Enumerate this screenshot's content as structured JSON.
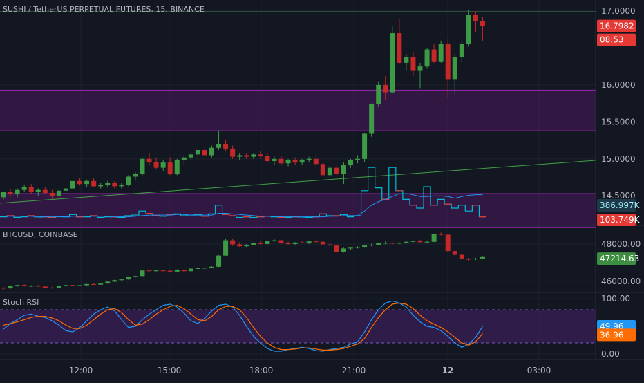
{
  "colors": {
    "bg": "#131722",
    "grid": "#1e222d",
    "text": "#b2b5be",
    "up": "#26a69a",
    "upCandle": "#3e9b45",
    "down": "#e53935",
    "downCandle": "#c62828",
    "zone": "#4a1a5c",
    "zoneLine": "#9c27b0",
    "trend": "#43a047",
    "cyan": "#00bcd4",
    "blueK": "#2196f3",
    "orangeD": "#ff6d00",
    "stochBand": "#3b1f56"
  },
  "time_axis": {
    "ticks": [
      "12:00",
      "15:00",
      "18:00",
      "21:00",
      "12",
      "03:00"
    ]
  },
  "chart_data": [
    {
      "type": "candlestick",
      "title": "SUSHI / TetherUS PERPETUAL FUTURES, 15, BINANCE",
      "y_ticks": [
        "17.0000",
        "16.0000",
        "15.5000",
        "15.0000",
        "14.5000"
      ],
      "last_price": "16.7982",
      "countdown": "08:53",
      "ylim": [
        14.1,
        17.15
      ],
      "zones": [
        [
          15.38,
          15.93
        ],
        [
          14.07,
          14.53
        ]
      ],
      "horizontal_line": 16.99,
      "trendline": [
        [
          0,
          14.4
        ],
        [
          1,
          14.98
        ]
      ],
      "candles": [
        [
          14.48,
          14.56,
          14.45,
          14.55
        ],
        [
          14.55,
          14.6,
          14.5,
          14.52
        ],
        [
          14.52,
          14.6,
          14.48,
          14.58
        ],
        [
          14.58,
          14.65,
          14.55,
          14.62
        ],
        [
          14.62,
          14.66,
          14.52,
          14.55
        ],
        [
          14.55,
          14.6,
          14.5,
          14.58
        ],
        [
          14.58,
          14.62,
          14.52,
          14.54
        ],
        [
          14.54,
          14.58,
          14.46,
          14.5
        ],
        [
          14.5,
          14.6,
          14.48,
          14.57
        ],
        [
          14.57,
          14.62,
          14.54,
          14.6
        ],
        [
          14.6,
          14.72,
          14.58,
          14.7
        ],
        [
          14.7,
          14.74,
          14.64,
          14.66
        ],
        [
          14.66,
          14.72,
          14.62,
          14.7
        ],
        [
          14.7,
          14.74,
          14.62,
          14.63
        ],
        [
          14.63,
          14.68,
          14.6,
          14.65
        ],
        [
          14.65,
          14.7,
          14.62,
          14.68
        ],
        [
          14.68,
          14.7,
          14.6,
          14.63
        ],
        [
          14.63,
          14.68,
          14.6,
          14.65
        ],
        [
          14.65,
          14.78,
          14.63,
          14.76
        ],
        [
          14.76,
          14.82,
          14.72,
          14.8
        ],
        [
          14.8,
          15.02,
          14.78,
          15.0
        ],
        [
          15.0,
          15.08,
          14.92,
          14.96
        ],
        [
          14.96,
          15.02,
          14.86,
          14.88
        ],
        [
          14.88,
          14.98,
          14.84,
          14.95
        ],
        [
          14.95,
          15.02,
          14.78,
          14.8
        ],
        [
          14.8,
          15.0,
          14.78,
          14.98
        ],
        [
          14.98,
          15.05,
          14.92,
          15.02
        ],
        [
          15.02,
          15.1,
          14.98,
          15.06
        ],
        [
          15.06,
          15.14,
          15.0,
          15.12
        ],
        [
          15.12,
          15.16,
          15.02,
          15.05
        ],
        [
          15.05,
          15.18,
          15.02,
          15.15
        ],
        [
          15.15,
          15.38,
          15.12,
          15.2
        ],
        [
          15.2,
          15.26,
          15.1,
          15.14
        ],
        [
          15.14,
          15.18,
          15.0,
          15.03
        ],
        [
          15.03,
          15.08,
          14.98,
          15.05
        ],
        [
          15.05,
          15.08,
          15.0,
          15.03
        ],
        [
          15.03,
          15.07,
          15.0,
          15.06
        ],
        [
          15.06,
          15.1,
          15.02,
          15.04
        ],
        [
          15.04,
          15.08,
          14.95,
          14.97
        ],
        [
          14.97,
          15.03,
          14.92,
          15.0
        ],
        [
          15.0,
          15.04,
          14.92,
          14.94
        ],
        [
          14.94,
          15.0,
          14.9,
          14.98
        ],
        [
          14.98,
          15.02,
          14.92,
          14.95
        ],
        [
          14.95,
          15.0,
          14.92,
          14.98
        ],
        [
          14.98,
          15.03,
          14.95,
          15.0
        ],
        [
          15.0,
          15.04,
          14.9,
          14.93
        ],
        [
          14.93,
          14.96,
          14.76,
          14.78
        ],
        [
          14.78,
          14.92,
          14.74,
          14.88
        ],
        [
          14.88,
          14.92,
          14.76,
          14.8
        ],
        [
          14.8,
          14.95,
          14.66,
          14.92
        ],
        [
          14.92,
          15.0,
          14.88,
          14.98
        ],
        [
          14.98,
          15.05,
          14.94,
          15.0
        ],
        [
          15.0,
          15.35,
          14.96,
          15.34
        ],
        [
          15.34,
          15.75,
          15.3,
          15.74
        ],
        [
          15.74,
          16.05,
          15.7,
          16.0
        ],
        [
          16.0,
          16.12,
          15.8,
          15.9
        ],
        [
          15.9,
          16.8,
          15.88,
          16.7
        ],
        [
          16.7,
          16.9,
          16.28,
          16.3
        ],
        [
          16.3,
          16.42,
          16.2,
          16.38
        ],
        [
          16.38,
          16.45,
          16.12,
          16.2
        ],
        [
          16.2,
          16.3,
          15.95,
          16.25
        ],
        [
          16.25,
          16.5,
          16.22,
          16.48
        ],
        [
          16.48,
          16.55,
          16.3,
          16.32
        ],
        [
          16.32,
          16.6,
          16.3,
          16.56
        ],
        [
          16.56,
          16.62,
          15.82,
          16.08
        ],
        [
          16.08,
          16.42,
          15.88,
          16.38
        ],
        [
          16.38,
          16.58,
          16.3,
          16.56
        ],
        [
          16.56,
          17.02,
          16.52,
          16.95
        ],
        [
          16.95,
          17.0,
          16.72,
          16.86
        ],
        [
          16.86,
          16.92,
          16.6,
          16.8
        ]
      ],
      "volume": {
        "label_a": "386.997K",
        "label_b": "103.749K",
        "bars": [
          0.1,
          0.12,
          0.09,
          0.1,
          0.12,
          0.08,
          0.1,
          0.09,
          0.11,
          0.1,
          0.14,
          0.1,
          0.1,
          0.12,
          0.09,
          0.1,
          0.08,
          0.09,
          0.12,
          0.13,
          0.2,
          0.16,
          0.12,
          0.11,
          0.14,
          0.15,
          0.12,
          0.13,
          0.14,
          0.11,
          0.15,
          0.3,
          0.14,
          0.12,
          0.09,
          0.1,
          0.09,
          0.1,
          0.11,
          0.1,
          0.09,
          0.09,
          0.1,
          0.08,
          0.09,
          0.1,
          0.15,
          0.12,
          0.12,
          0.14,
          0.1,
          0.12,
          0.55,
          0.95,
          0.6,
          0.4,
          0.95,
          0.55,
          0.4,
          0.3,
          0.25,
          0.62,
          0.3,
          0.4,
          0.32,
          0.25,
          0.3,
          0.2,
          0.3,
          0.1
        ],
        "ma": [
          0.11,
          0.11,
          0.11,
          0.11,
          0.11,
          0.1,
          0.1,
          0.1,
          0.1,
          0.1,
          0.11,
          0.11,
          0.11,
          0.11,
          0.11,
          0.11,
          0.1,
          0.1,
          0.1,
          0.11,
          0.12,
          0.13,
          0.13,
          0.13,
          0.13,
          0.14,
          0.14,
          0.13,
          0.13,
          0.13,
          0.13,
          0.16,
          0.16,
          0.15,
          0.14,
          0.13,
          0.12,
          0.11,
          0.11,
          0.11,
          0.1,
          0.1,
          0.1,
          0.1,
          0.1,
          0.1,
          0.1,
          0.11,
          0.11,
          0.12,
          0.12,
          0.12,
          0.2,
          0.3,
          0.36,
          0.4,
          0.45,
          0.5,
          0.5,
          0.48,
          0.45,
          0.45,
          0.46,
          0.46,
          0.45,
          0.42,
          0.45,
          0.47,
          0.48,
          0.48
        ]
      }
    },
    {
      "type": "candlestick",
      "title": "BTCUSD, COINBASE",
      "y_ticks": [
        "48000.00",
        "46000.00"
      ],
      "last_price": "47214.63",
      "ylim": [
        45400,
        49000
      ],
      "candles": [
        [
          45650,
          45700,
          45550,
          45620
        ],
        [
          45620,
          45780,
          45600,
          45760
        ],
        [
          45760,
          45820,
          45700,
          45800
        ],
        [
          45800,
          45830,
          45720,
          45740
        ],
        [
          45740,
          45790,
          45700,
          45760
        ],
        [
          45760,
          45800,
          45700,
          45720
        ],
        [
          45720,
          45760,
          45640,
          45660
        ],
        [
          45660,
          45700,
          45600,
          45650
        ],
        [
          45650,
          45780,
          45640,
          45760
        ],
        [
          45760,
          45820,
          45720,
          45800
        ],
        [
          45800,
          45830,
          45740,
          45760
        ],
        [
          45760,
          45800,
          45740,
          45790
        ],
        [
          45790,
          45860,
          45770,
          45850
        ],
        [
          45850,
          45900,
          45800,
          45820
        ],
        [
          45820,
          45900,
          45810,
          45880
        ],
        [
          45880,
          46000,
          45860,
          45980
        ],
        [
          45980,
          46080,
          45960,
          46060
        ],
        [
          46060,
          46120,
          46020,
          46100
        ],
        [
          46100,
          46260,
          46080,
          46240
        ],
        [
          46240,
          46300,
          46200,
          46280
        ],
        [
          46280,
          46600,
          46260,
          46580
        ],
        [
          46580,
          46620,
          46520,
          46560
        ],
        [
          46560,
          46600,
          46520,
          46580
        ],
        [
          46580,
          46620,
          46540,
          46560
        ],
        [
          46560,
          46600,
          46500,
          46520
        ],
        [
          46520,
          46640,
          46500,
          46620
        ],
        [
          46620,
          46660,
          46520,
          46540
        ],
        [
          46540,
          46700,
          46520,
          46680
        ],
        [
          46680,
          46720,
          46640,
          46700
        ],
        [
          46700,
          46760,
          46660,
          46720
        ],
        [
          46720,
          46800,
          46700,
          46780
        ],
        [
          46780,
          47400,
          46760,
          47380
        ],
        [
          47380,
          48300,
          47360,
          48200
        ],
        [
          48200,
          48280,
          47900,
          47980
        ],
        [
          47980,
          48100,
          47820,
          47880
        ],
        [
          47880,
          48000,
          47800,
          47960
        ],
        [
          47960,
          48080,
          47940,
          48060
        ],
        [
          48060,
          48160,
          47980,
          48000
        ],
        [
          48000,
          48180,
          47980,
          48160
        ],
        [
          48160,
          48280,
          48120,
          48200
        ],
        [
          48200,
          48240,
          48020,
          48060
        ],
        [
          48060,
          48120,
          47960,
          48000
        ],
        [
          48000,
          48100,
          47960,
          48080
        ],
        [
          48080,
          48160,
          48040,
          48060
        ],
        [
          48060,
          48180,
          48000,
          48140
        ],
        [
          48140,
          48260,
          48100,
          48120
        ],
        [
          48120,
          48200,
          47940,
          47980
        ],
        [
          47980,
          48040,
          47880,
          47920
        ],
        [
          47920,
          47960,
          47540,
          47560
        ],
        [
          47560,
          47800,
          47540,
          47760
        ],
        [
          47760,
          47840,
          47700,
          47800
        ],
        [
          47800,
          47880,
          47760,
          47840
        ],
        [
          47840,
          47940,
          47800,
          47920
        ],
        [
          47920,
          48020,
          47880,
          47960
        ],
        [
          47960,
          48080,
          47940,
          48040
        ],
        [
          48040,
          48140,
          47980,
          48060
        ],
        [
          48060,
          48100,
          47980,
          48020
        ],
        [
          48020,
          48100,
          47980,
          48060
        ],
        [
          48060,
          48160,
          48040,
          48120
        ],
        [
          48120,
          48200,
          48080,
          48160
        ],
        [
          48160,
          48220,
          48060,
          48100
        ],
        [
          48100,
          48160,
          48060,
          48120
        ],
        [
          48120,
          48560,
          48100,
          48540
        ],
        [
          48540,
          48620,
          48460,
          48500
        ],
        [
          48500,
          48520,
          47600,
          47620
        ],
        [
          47620,
          47640,
          47360,
          47420
        ],
        [
          47420,
          47500,
          47160,
          47200
        ],
        [
          47200,
          47260,
          47120,
          47180
        ],
        [
          47180,
          47260,
          47140,
          47220
        ],
        [
          47220,
          47320,
          47200,
          47300
        ]
      ]
    },
    {
      "type": "line",
      "title": "Stoch RSI",
      "y_ticks": [
        "100.00",
        "0.00"
      ],
      "ylim": [
        0,
        100
      ],
      "band": [
        20,
        80
      ],
      "series": [
        {
          "label": "49.96",
          "values": [
            45,
            55,
            62,
            70,
            72,
            68,
            66,
            60,
            52,
            42,
            40,
            48,
            60,
            72,
            80,
            85,
            78,
            62,
            48,
            50,
            62,
            72,
            80,
            88,
            90,
            85,
            74,
            60,
            55,
            65,
            78,
            88,
            90,
            85,
            70,
            50,
            32,
            20,
            10,
            5,
            5,
            8,
            10,
            12,
            10,
            6,
            5,
            8,
            10,
            12,
            18,
            22,
            40,
            62,
            80,
            92,
            96,
            92,
            85,
            70,
            58,
            50,
            48,
            42,
            32,
            20,
            12,
            18,
            30,
            50
          ]
        },
        {
          "label": "36.96",
          "values": [
            52,
            55,
            58,
            62,
            66,
            68,
            68,
            65,
            60,
            52,
            46,
            46,
            52,
            62,
            72,
            80,
            82,
            75,
            62,
            52,
            54,
            62,
            72,
            80,
            86,
            88,
            82,
            72,
            62,
            60,
            68,
            80,
            86,
            86,
            80,
            66,
            48,
            32,
            20,
            12,
            8,
            8,
            9,
            11,
            11,
            9,
            7,
            7,
            8,
            10,
            14,
            18,
            28,
            48,
            66,
            80,
            90,
            92,
            90,
            82,
            70,
            60,
            54,
            48,
            40,
            30,
            20,
            16,
            22,
            37
          ]
        }
      ]
    }
  ]
}
